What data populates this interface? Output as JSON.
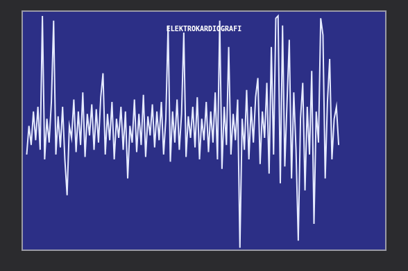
{
  "chart_data": {
    "type": "line",
    "title": "ELEKTROKARDIOGRAFI",
    "values": [
      40,
      52,
      44,
      58,
      46,
      60,
      42,
      98,
      38,
      55,
      45,
      62,
      96,
      40,
      56,
      43,
      60,
      38,
      23,
      52,
      47,
      63,
      41,
      58,
      44,
      66,
      39,
      57,
      48,
      61,
      42,
      59,
      45,
      64,
      74,
      40,
      57,
      46,
      62,
      38,
      55,
      47,
      60,
      42,
      58,
      30,
      52,
      45,
      63,
      41,
      57,
      44,
      65,
      39,
      56,
      48,
      61,
      43,
      58,
      46,
      62,
      40,
      55,
      94,
      37,
      58,
      45,
      63,
      42,
      57,
      91,
      39,
      56,
      47,
      60,
      43,
      64,
      38,
      55,
      46,
      62,
      41,
      58,
      45,
      66,
      38,
      96,
      34,
      60,
      44,
      85,
      40,
      57,
      46,
      63,
      1,
      55,
      42,
      67,
      38,
      60,
      45,
      64,
      72,
      36,
      58,
      47,
      70,
      32,
      85,
      40,
      97,
      98,
      28,
      94,
      35,
      62,
      88,
      30,
      66,
      42,
      4,
      55,
      70,
      25,
      60,
      40,
      75,
      11,
      58,
      45,
      97,
      90,
      30,
      62,
      80,
      38,
      55,
      60,
      44
    ],
    "color": "#e6ebff",
    "xlim": [
      -2,
      160
    ],
    "ylim": [
      0,
      100
    ],
    "xticks": [],
    "yticks": [],
    "grid": false,
    "tick_labels": false
  }
}
